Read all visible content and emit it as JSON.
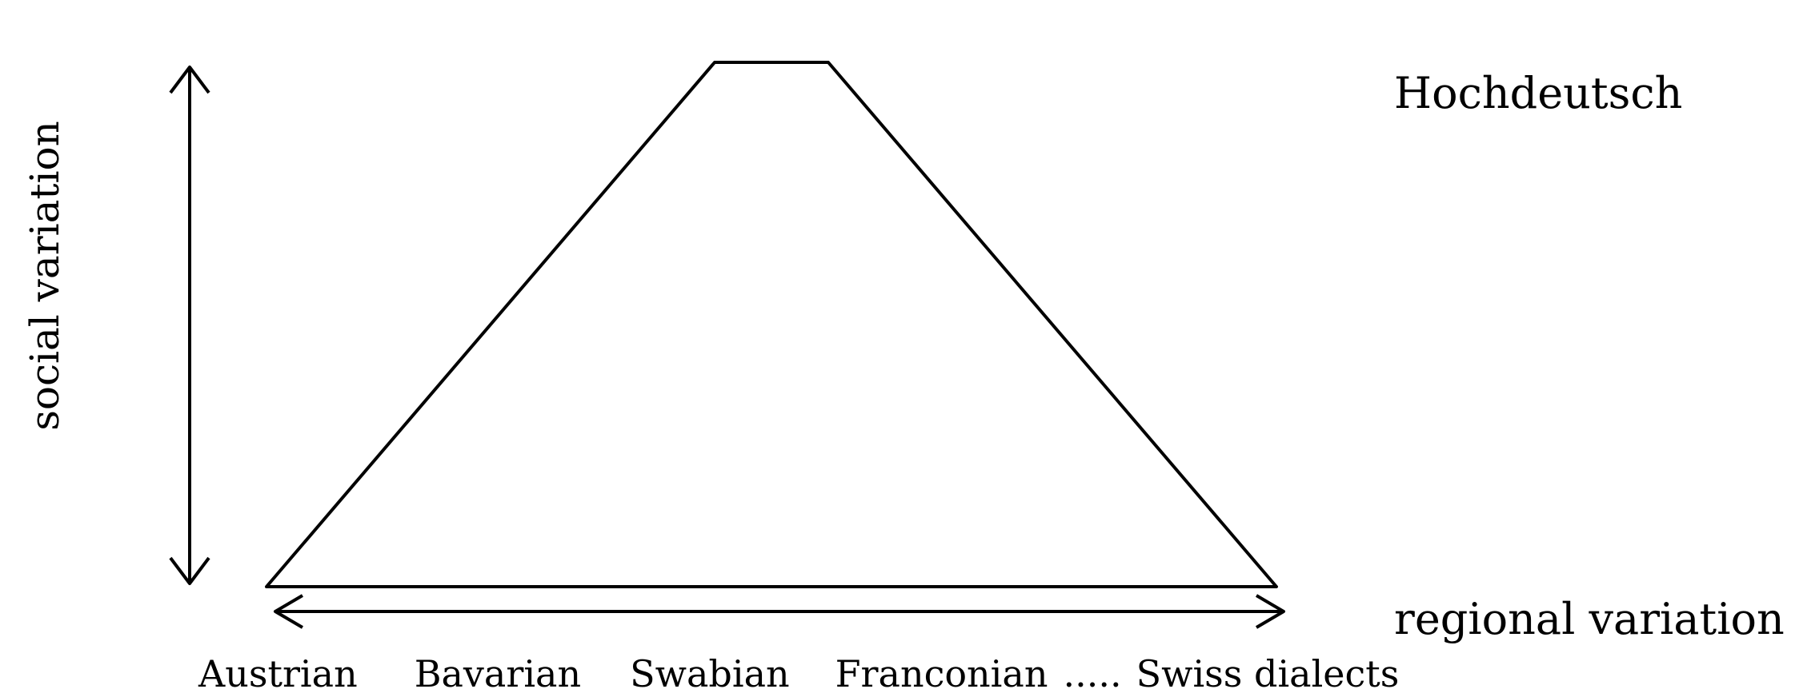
{
  "diagram": {
    "top_label": "Hochdeutsch",
    "bottom_label": "regional variation",
    "vertical_axis_label": "social variation",
    "regions": [
      "Austrian",
      "Bavarian",
      "Swabian",
      "Franconian",
      ".....",
      "Swiss dialects"
    ]
  },
  "colors": {
    "line": "#000000",
    "background": "#ffffff"
  }
}
